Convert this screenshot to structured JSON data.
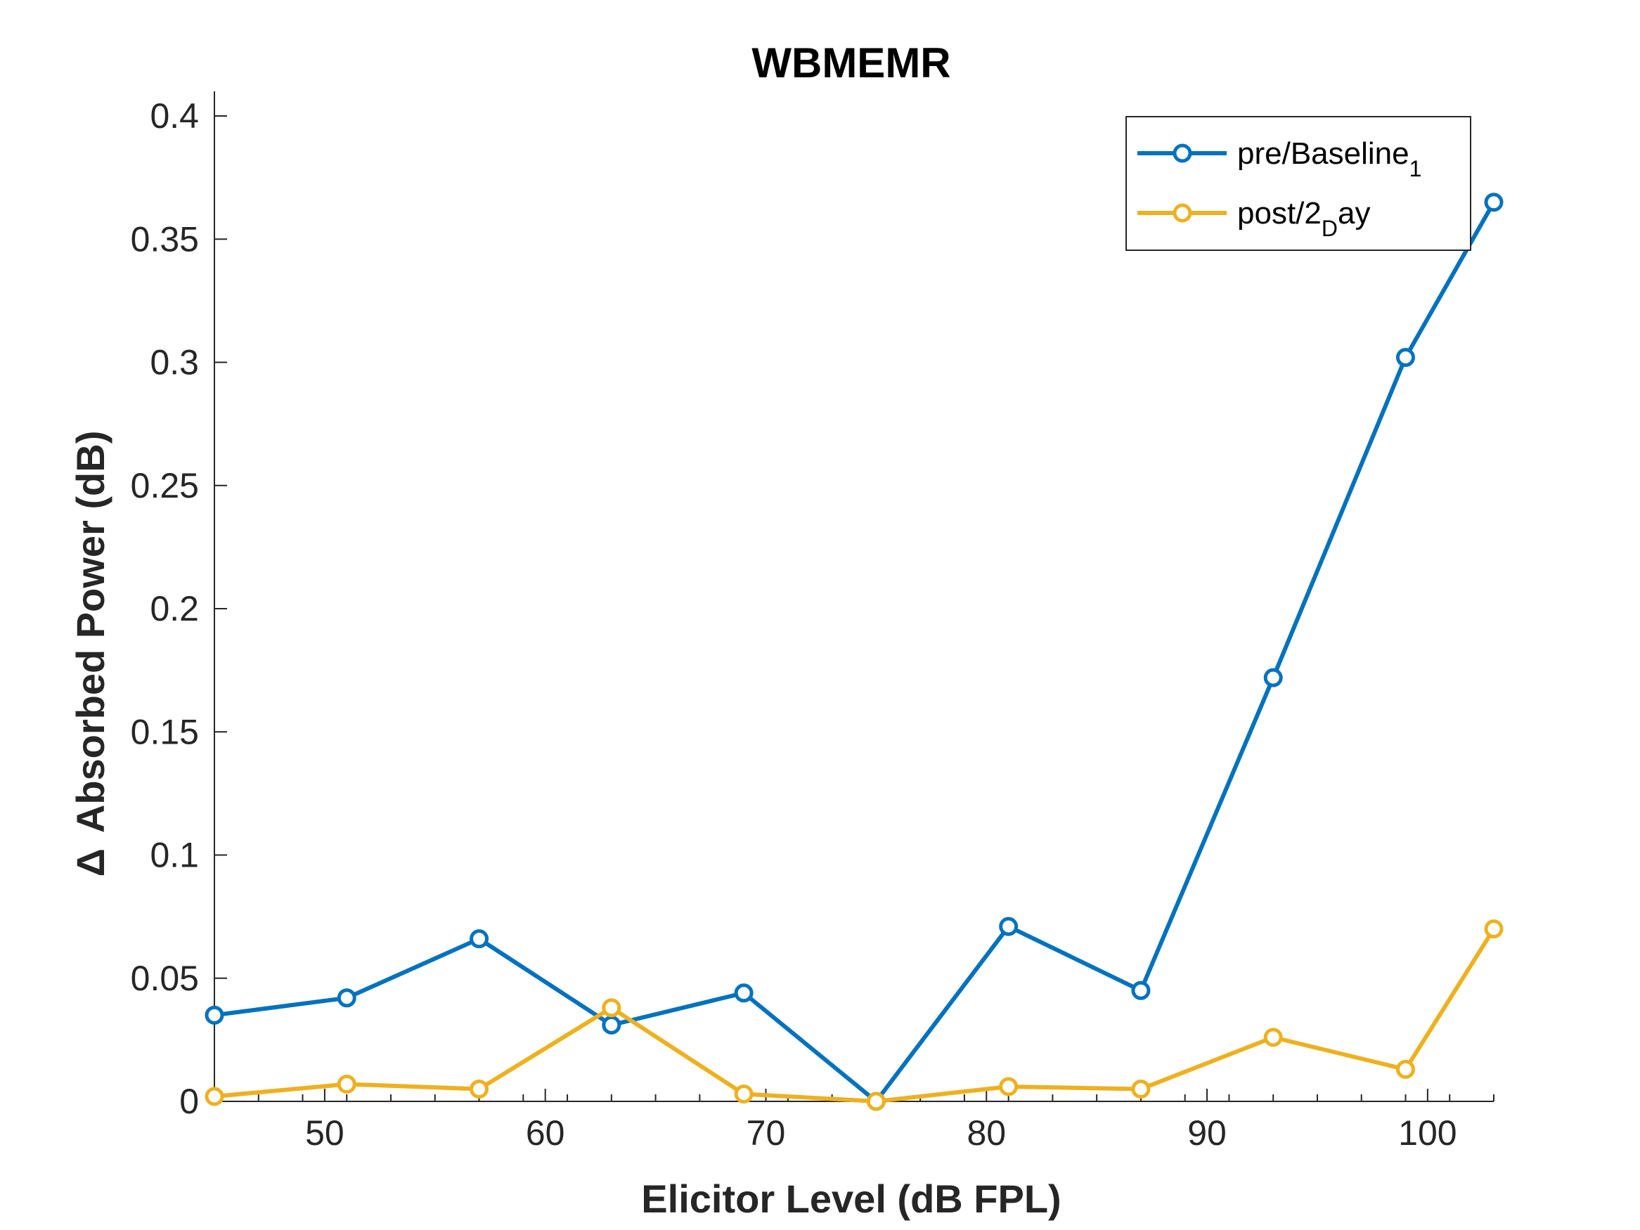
{
  "chart_data": {
    "type": "line",
    "title": "WBMEMR",
    "xlabel": "Elicitor Level (dB FPL)",
    "ylabel": "Absorbed Power (dB)",
    "ylabel_symbol": "Δ",
    "xlim": [
      45,
      103
    ],
    "ylim": [
      0,
      0.41
    ],
    "xticks": [
      50,
      60,
      70,
      80,
      90,
      100
    ],
    "xtick_labels": [
      "50",
      "60",
      "70",
      "80",
      "90",
      "100"
    ],
    "yticks": [
      0,
      0.05,
      0.1,
      0.15,
      0.2,
      0.25,
      0.3,
      0.35,
      0.4
    ],
    "ytick_labels": [
      "0",
      "0.05",
      "0.1",
      "0.15",
      "0.2",
      "0.25",
      "0.3",
      "0.35",
      "0.4"
    ],
    "x_minor_ticks": [
      45,
      47,
      49,
      51,
      53,
      55,
      57,
      59,
      61,
      63,
      65,
      67,
      69,
      71,
      73,
      75,
      77,
      79,
      81,
      83,
      85,
      87,
      89,
      91,
      93,
      95,
      97,
      99,
      101,
      103
    ],
    "grid": false,
    "legend_position": "top-right",
    "x": [
      45,
      51,
      57,
      63,
      69,
      75,
      81,
      87,
      93,
      99,
      103
    ],
    "series": [
      {
        "legend_base": "pre/Baseline",
        "legend_sub": "1",
        "legend_tail": "",
        "color": "#0072BD",
        "values": [
          0.035,
          0.042,
          0.066,
          0.031,
          0.044,
          0.0,
          0.071,
          0.045,
          0.172,
          0.302,
          0.365
        ]
      },
      {
        "legend_base": "post/2",
        "legend_sub": "D",
        "legend_tail": "ay",
        "color": "#EDB120",
        "values": [
          0.002,
          0.007,
          0.005,
          0.038,
          0.003,
          0.0,
          0.006,
          0.005,
          0.026,
          0.013,
          0.07
        ]
      }
    ]
  }
}
